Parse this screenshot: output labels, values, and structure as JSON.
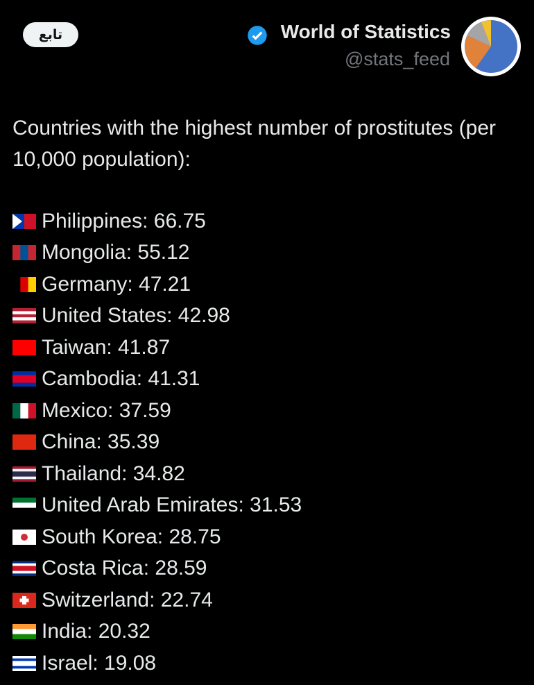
{
  "header": {
    "follow_button": "تابع",
    "name": "World of Statistics",
    "handle": "@stats_feed"
  },
  "post": {
    "intro": "Countries with the highest number of prostitutes (per 10,000 population):",
    "items": [
      "Philippines: 66.75",
      "Mongolia: 55.12",
      "Germany: 47.21",
      "United States: 42.98",
      "Taiwan: 41.87",
      "Cambodia: 41.31",
      "Mexico: 37.59",
      "China: 35.39",
      "Thailand: 34.82",
      "United Arab Emirates: 31.53",
      "South Korea: 28.75",
      "Costa Rica: 28.59",
      "Switzerland: 22.74",
      "India: 20.32",
      "Israel: 19.08"
    ]
  }
}
